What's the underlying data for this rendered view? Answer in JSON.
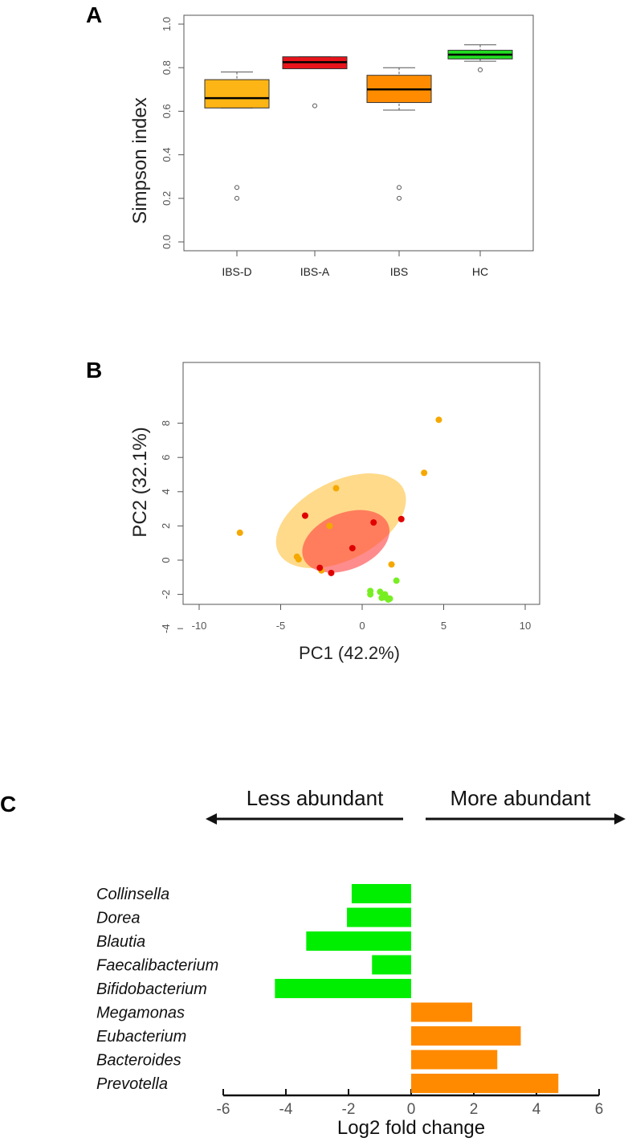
{
  "panel_labels": {
    "a": "A",
    "b": "B",
    "c": "C"
  },
  "chart_data": [
    {
      "type": "box",
      "panel": "A",
      "ylabel": "Simpson index",
      "ylim": [
        0,
        1
      ],
      "yticks": [
        "0.0",
        "0.2",
        "0.4",
        "0.6",
        "0.8",
        "1.0"
      ],
      "categories": [
        "IBS-D",
        "IBS-A",
        "IBS",
        "HC"
      ],
      "colors": [
        "#FDB515",
        "#E8141B",
        "#FF8C00",
        "#22DD22"
      ],
      "boxes": [
        {
          "low": 0.615,
          "q1": 0.615,
          "median": 0.66,
          "q3": 0.745,
          "high": 0.78,
          "outliers": [
            0.25,
            0.2
          ]
        },
        {
          "low": 0.795,
          "q1": 0.795,
          "median": 0.825,
          "q3": 0.85,
          "high": 0.85,
          "outliers": [
            0.625
          ]
        },
        {
          "low": 0.605,
          "q1": 0.64,
          "median": 0.7,
          "q3": 0.765,
          "high": 0.8,
          "outliers": [
            0.25,
            0.2
          ]
        },
        {
          "low": 0.83,
          "q1": 0.84,
          "median": 0.86,
          "q3": 0.88,
          "high": 0.905,
          "outliers": [
            0.79
          ]
        }
      ]
    },
    {
      "type": "scatter",
      "panel": "B",
      "xlabel": "PC1 (42.2%)",
      "ylabel": "PC2 (32.1%)",
      "xlim": [
        -11,
        11
      ],
      "ylim": [
        -4.6,
        9.5
      ],
      "xticks": [
        "-10",
        "-5",
        "0",
        "5",
        "10"
      ],
      "yticks": [
        "-4",
        "-2",
        "0",
        "2",
        "4",
        "6",
        "8"
      ],
      "ellipses": [
        {
          "color": "#FDB515",
          "opacity": 0.5,
          "cx": -1.3,
          "cy": 2.3,
          "rx": 4.3,
          "ry": 2.3,
          "angle": 27
        },
        {
          "color": "#FF4040",
          "opacity": 0.6,
          "cx": -1.0,
          "cy": 1.1,
          "rx": 2.8,
          "ry": 1.65,
          "angle": 22
        }
      ],
      "series": [
        {
          "name": "IBS-D",
          "color": "#F5A800",
          "points": [
            [
              -7.5,
              1.6
            ],
            [
              -4,
              0.2
            ],
            [
              -3.9,
              0.05
            ],
            [
              -1.6,
              4.2
            ],
            [
              -2,
              2
            ],
            [
              -2.5,
              -0.6
            ],
            [
              1.8,
              -0.25
            ],
            [
              3.8,
              5.1
            ],
            [
              4.7,
              8.2
            ]
          ]
        },
        {
          "name": "IBS-A",
          "color": "#E00000",
          "points": [
            [
              -3.5,
              2.6
            ],
            [
              -2.6,
              -0.45
            ],
            [
              -1.9,
              -0.75
            ],
            [
              -0.6,
              0.7
            ],
            [
              0.7,
              2.2
            ],
            [
              2.4,
              2.4
            ]
          ]
        },
        {
          "name": "HC",
          "color": "#77EE22",
          "points": [
            [
              2.1,
              -1.2
            ],
            [
              0.5,
              -1.8
            ],
            [
              0.5,
              -2
            ],
            [
              1.1,
              -1.85
            ],
            [
              1.3,
              -2.1
            ],
            [
              1.4,
              -2
            ],
            [
              1.5,
              -2.2
            ],
            [
              1.6,
              -2.3
            ],
            [
              1.7,
              -2.25
            ],
            [
              1.2,
              -2.2
            ]
          ]
        }
      ]
    },
    {
      "type": "bar",
      "panel": "C",
      "orientation": "horizontal",
      "xlabel": "Log2 fold change",
      "xlim": [
        -6,
        6
      ],
      "xticks": [
        "-6",
        "-4",
        "-2",
        "0",
        "2",
        "4",
        "6"
      ],
      "annotations": {
        "left": "Less abundant",
        "right": "More abundant"
      },
      "categories": [
        "Collinsella",
        "Dorea",
        "Blautia",
        "Faecalibacterium",
        "Bifidobacterium",
        "Megamonas",
        "Eubacterium",
        "Bacteroides",
        "Prevotella"
      ],
      "values": [
        -1.9,
        -2.05,
        -3.35,
        -1.25,
        -4.35,
        1.95,
        3.5,
        2.75,
        4.7
      ],
      "colors": {
        "negative": "#00EE00",
        "positive": "#FF8A00"
      }
    }
  ]
}
